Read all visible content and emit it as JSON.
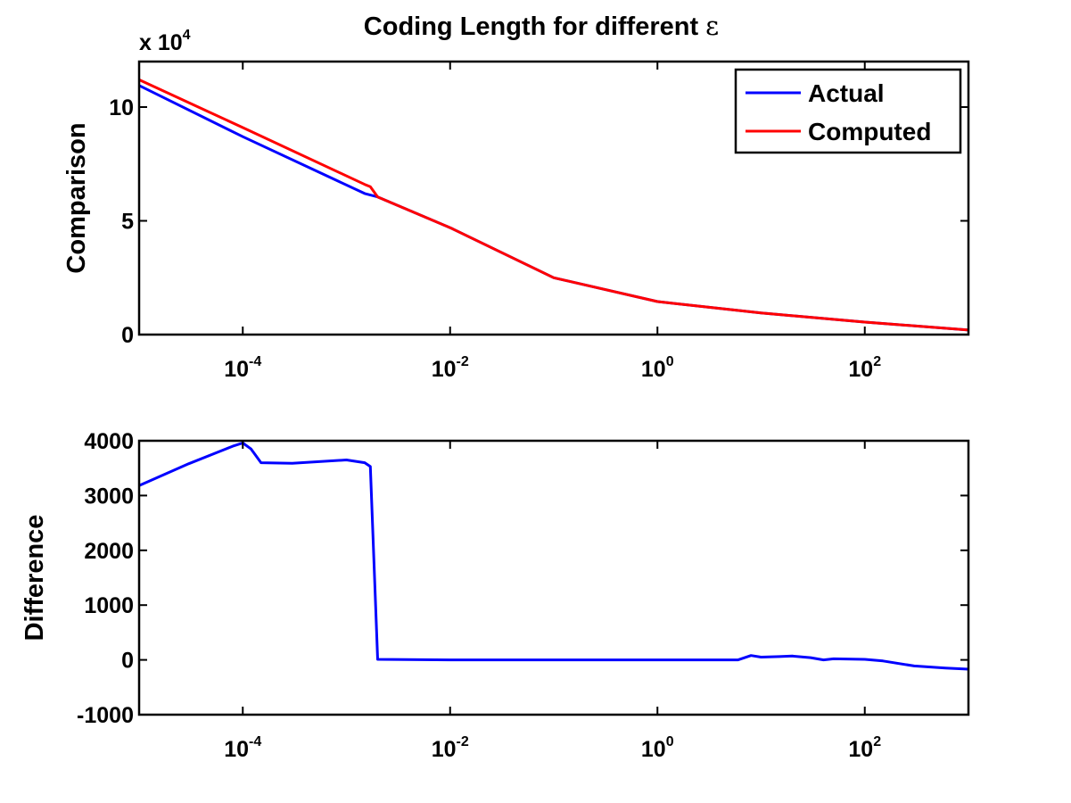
{
  "figure": {
    "title_prefix": "Coding Length for different ",
    "title_symbol": "ε"
  },
  "chart_data": [
    {
      "type": "line",
      "title": "Coding Length for different ε",
      "xlabel": "",
      "ylabel": "Comparison",
      "xscale": "log",
      "xlim": [
        1e-05,
        1000
      ],
      "ylim": [
        0,
        12
      ],
      "y_multiplier": {
        "base": "x 10",
        "exponent": "4"
      },
      "grid": false,
      "legend_position": "top-right",
      "x_ticks": [
        {
          "base": "10",
          "exp": "-4",
          "value": 0.0001
        },
        {
          "base": "10",
          "exp": "-2",
          "value": 0.01
        },
        {
          "base": "10",
          "exp": "0",
          "value": 1
        },
        {
          "base": "10",
          "exp": "2",
          "value": 100
        }
      ],
      "y_ticks": [
        {
          "label": "0",
          "value": 0
        },
        {
          "label": "5",
          "value": 5
        },
        {
          "label": "10",
          "value": 10
        }
      ],
      "series": [
        {
          "name": "Actual",
          "color": "#0000ff",
          "points": [
            [
              1e-05,
              10.95
            ],
            [
              0.0001,
              8.7
            ],
            [
              0.0015,
              6.2
            ],
            [
              0.002,
              6.05
            ],
            [
              0.01,
              4.7
            ],
            [
              0.1,
              2.5
            ],
            [
              1,
              1.45
            ],
            [
              10,
              0.95
            ],
            [
              100,
              0.55
            ],
            [
              1000,
              0.2
            ]
          ]
        },
        {
          "name": "Computed",
          "color": "#ff0000",
          "points": [
            [
              1e-05,
              11.2
            ],
            [
              0.0001,
              9.1
            ],
            [
              0.0015,
              6.6
            ],
            [
              0.0017,
              6.5
            ],
            [
              0.002,
              6.05
            ],
            [
              0.01,
              4.7
            ],
            [
              0.1,
              2.5
            ],
            [
              1,
              1.45
            ],
            [
              10,
              0.95
            ],
            [
              100,
              0.55
            ],
            [
              1000,
              0.2
            ]
          ]
        }
      ]
    },
    {
      "type": "line",
      "xlabel": "",
      "ylabel": "Difference",
      "xscale": "log",
      "xlim": [
        1e-05,
        1000
      ],
      "ylim": [
        -1000,
        4000
      ],
      "grid": false,
      "x_ticks": [
        {
          "base": "10",
          "exp": "-4",
          "value": 0.0001
        },
        {
          "base": "10",
          "exp": "-2",
          "value": 0.01
        },
        {
          "base": "10",
          "exp": "0",
          "value": 1
        },
        {
          "base": "10",
          "exp": "2",
          "value": 100
        }
      ],
      "y_ticks": [
        {
          "label": "-1000",
          "value": -1000
        },
        {
          "label": "0",
          "value": 0
        },
        {
          "label": "1000",
          "value": 1000
        },
        {
          "label": "2000",
          "value": 2000
        },
        {
          "label": "3000",
          "value": 3000
        },
        {
          "label": "4000",
          "value": 4000
        }
      ],
      "series": [
        {
          "color": "#0000ff",
          "points": [
            [
              1e-05,
              3180
            ],
            [
              3e-05,
              3580
            ],
            [
              8e-05,
              3900
            ],
            [
              0.0001,
              3960
            ],
            [
              0.00012,
              3850
            ],
            [
              0.00015,
              3600
            ],
            [
              0.0003,
              3590
            ],
            [
              0.001,
              3650
            ],
            [
              0.0015,
              3600
            ],
            [
              0.0017,
              3530
            ],
            [
              0.002,
              10
            ],
            [
              0.01,
              0
            ],
            [
              0.1,
              0
            ],
            [
              1,
              0
            ],
            [
              6,
              0
            ],
            [
              8,
              80
            ],
            [
              10,
              50
            ],
            [
              15,
              60
            ],
            [
              20,
              70
            ],
            [
              30,
              40
            ],
            [
              40,
              0
            ],
            [
              50,
              20
            ],
            [
              100,
              10
            ],
            [
              150,
              -20
            ],
            [
              300,
              -110
            ],
            [
              600,
              -150
            ],
            [
              1000,
              -170
            ]
          ]
        }
      ]
    }
  ]
}
